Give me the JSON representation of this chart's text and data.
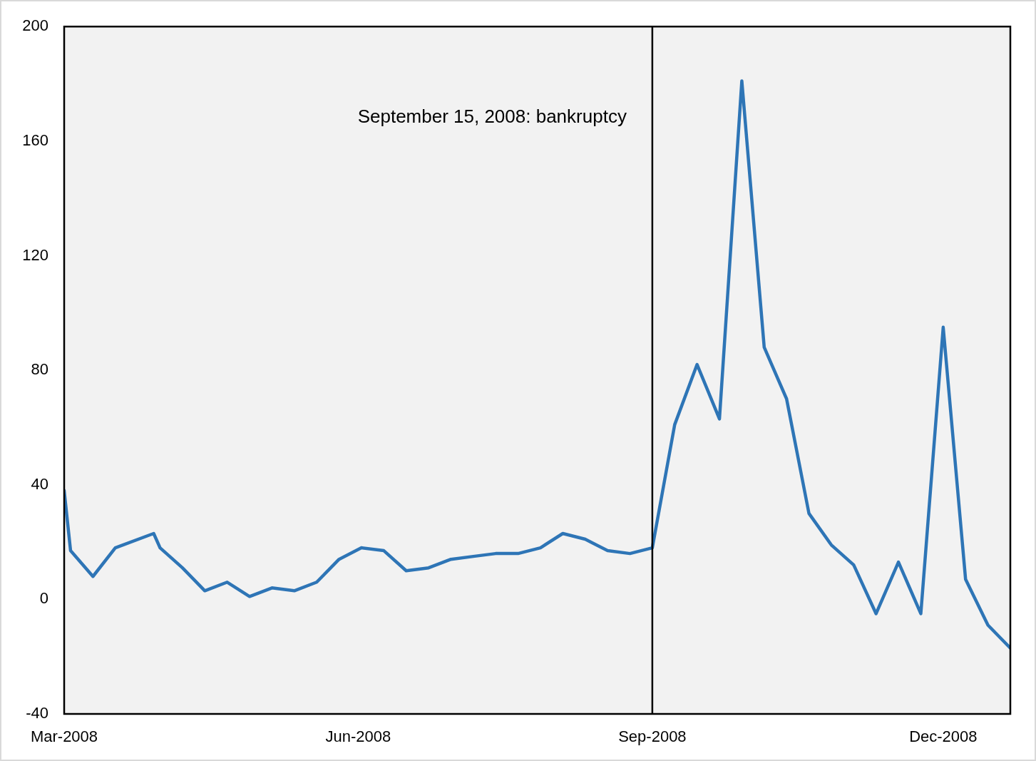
{
  "chart_data": {
    "type": "line",
    "x": [
      "2008-03-01",
      "2008-03-03",
      "2008-03-10",
      "2008-03-17",
      "2008-03-29",
      "2008-03-31",
      "2008-04-07",
      "2008-04-14",
      "2008-04-21",
      "2008-04-28",
      "2008-05-05",
      "2008-05-12",
      "2008-05-19",
      "2008-05-26",
      "2008-06-02",
      "2008-06-09",
      "2008-06-16",
      "2008-06-23",
      "2008-06-30",
      "2008-07-07",
      "2008-07-14",
      "2008-07-21",
      "2008-07-28",
      "2008-08-04",
      "2008-08-11",
      "2008-08-18",
      "2008-08-25",
      "2008-09-01",
      "2008-09-08",
      "2008-09-15",
      "2008-09-22",
      "2008-09-29",
      "2008-10-06",
      "2008-10-13",
      "2008-10-20",
      "2008-10-27",
      "2008-11-03",
      "2008-11-10",
      "2008-11-17",
      "2008-11-24",
      "2008-12-01",
      "2008-12-08",
      "2008-12-15",
      "2008-12-22"
    ],
    "series": [
      {
        "color": "#2e75b6",
        "values": [
          38,
          17,
          8,
          18,
          23,
          18,
          11,
          3,
          6,
          1,
          4,
          3,
          6,
          14,
          18,
          17,
          10,
          11,
          14,
          15,
          16,
          16,
          18,
          23,
          21,
          17,
          16,
          18,
          61,
          82,
          63,
          181,
          88,
          70,
          30,
          19,
          12,
          -5,
          13,
          -5,
          95,
          7,
          -9,
          -17
        ]
      }
    ],
    "xlim": [
      "2008-03-01",
      "2008-12-22"
    ],
    "xticks": [
      {
        "value": "2008-03-01",
        "label": "Mar-2008"
      },
      {
        "value": "2008-06-01",
        "label": "Jun-2008"
      },
      {
        "value": "2008-09-01",
        "label": "Sep-2008"
      },
      {
        "value": "2008-12-01",
        "label": "Dec-2008"
      }
    ],
    "ylim": [
      -40,
      200
    ],
    "yticks": [
      -40,
      0,
      40,
      80,
      120,
      160,
      200
    ],
    "ref_lines": [
      {
        "axis": "x",
        "value": "2008-09-01",
        "color": "#000000",
        "label": "September 15, 2008: bankruptcy"
      }
    ],
    "legend": false,
    "marker": "none",
    "line_style": "solid"
  }
}
